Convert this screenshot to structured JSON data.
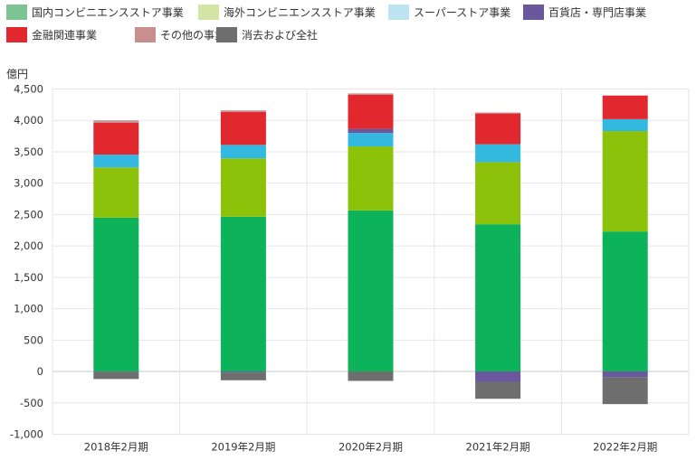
{
  "chart_data": {
    "type": "bar",
    "stacked": true,
    "unit_label": "億円",
    "categories": [
      "2018年2月期",
      "2019年2月期",
      "2020年2月期",
      "2021年2月期",
      "2022年2月期"
    ],
    "ylim": [
      -1000,
      4500
    ],
    "yticks": [
      {
        "value": 4500,
        "label": "4,500"
      },
      {
        "value": 4000,
        "label": "4,000"
      },
      {
        "value": 3500,
        "label": "3,500"
      },
      {
        "value": 3000,
        "label": "3,000"
      },
      {
        "value": 2500,
        "label": "2,500"
      },
      {
        "value": 2000,
        "label": "2,000"
      },
      {
        "value": 1500,
        "label": "1,500"
      },
      {
        "value": 1000,
        "label": "1,000"
      },
      {
        "value": 500,
        "label": "500"
      },
      {
        "value": 0,
        "label": "0"
      },
      {
        "value": -500,
        "label": "-500"
      },
      {
        "value": -1000,
        "label": "-1,000"
      }
    ],
    "grid": true,
    "legend_position": "top",
    "series": [
      {
        "name": "国内コンビニエンスストア事業",
        "legend_color": "#7dc494",
        "bar_color": "#0db35a",
        "values": [
          2450,
          2465,
          2565,
          2345,
          2230
        ]
      },
      {
        "name": "海外コンビニエンスストア事業",
        "legend_color": "#d3e5a4",
        "bar_color": "#8dc20a",
        "values": [
          800,
          930,
          1020,
          990,
          1600
        ]
      },
      {
        "name": "スーパーストア事業",
        "legend_color": "#bde2f2",
        "bar_color": "#33b8e0",
        "values": [
          205,
          215,
          215,
          285,
          190
        ]
      },
      {
        "name": "百貨店・専門店事業",
        "legend_color": "#6a579e",
        "bar_color": "#6a579e",
        "values": [
          -5,
          -15,
          65,
          -165,
          -90
        ]
      },
      {
        "name": "金融関連事業",
        "legend_color": "#e0282e",
        "bar_color": "#e0282e",
        "values": [
          505,
          525,
          545,
          490,
          375
        ]
      },
      {
        "name": "その他の事業",
        "legend_color": "#c98e8e",
        "bar_color": "#c98e8e",
        "values": [
          40,
          25,
          20,
          15,
          5
        ]
      },
      {
        "name": "消去および全社",
        "legend_color": "#6e6e6e",
        "bar_color": "#6e6e6e",
        "values": [
          -115,
          -125,
          -150,
          -270,
          -430
        ]
      }
    ]
  }
}
